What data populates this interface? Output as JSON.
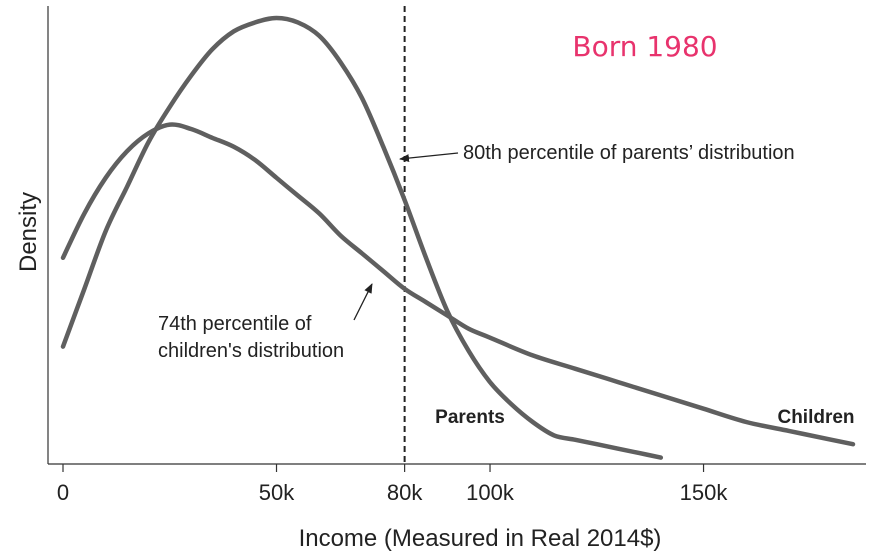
{
  "chart_data": {
    "type": "line",
    "title": "Born 1980",
    "title_color": "#e8336d",
    "xlabel": "Income (Measured in Real 2014$)",
    "ylabel": "Density",
    "xlim": [
      0,
      185
    ],
    "ylim": [
      0,
      1
    ],
    "x_unit": "k",
    "grid": false,
    "x_ticks": [
      {
        "value": 0,
        "label": "0"
      },
      {
        "value": 50,
        "label": "50k"
      },
      {
        "value": 80,
        "label": "80k"
      },
      {
        "value": 100,
        "label": "100k"
      },
      {
        "value": 150,
        "label": "150k"
      }
    ],
    "line_color": "#5f5f5f",
    "series": [
      {
        "name": "Parents",
        "x": [
          0,
          5,
          10,
          15,
          20,
          25,
          30,
          35,
          40,
          45,
          50,
          55,
          60,
          65,
          70,
          75,
          80,
          85,
          90,
          95,
          100,
          105,
          110,
          115,
          120,
          125,
          130,
          135,
          140
        ],
        "y": [
          0.26,
          0.39,
          0.52,
          0.62,
          0.72,
          0.8,
          0.87,
          0.93,
          0.97,
          0.99,
          1.0,
          0.99,
          0.96,
          0.9,
          0.82,
          0.71,
          0.59,
          0.46,
          0.34,
          0.25,
          0.18,
          0.13,
          0.09,
          0.06,
          0.05,
          0.04,
          0.03,
          0.02,
          0.01
        ]
      },
      {
        "name": "Children",
        "x": [
          0,
          5,
          10,
          15,
          20,
          25,
          30,
          35,
          40,
          45,
          50,
          55,
          60,
          65,
          70,
          75,
          80,
          85,
          90,
          95,
          100,
          110,
          120,
          130,
          140,
          150,
          160,
          170,
          180,
          185
        ],
        "y": [
          0.46,
          0.56,
          0.64,
          0.7,
          0.74,
          0.76,
          0.75,
          0.73,
          0.71,
          0.68,
          0.64,
          0.6,
          0.56,
          0.51,
          0.47,
          0.43,
          0.39,
          0.36,
          0.33,
          0.3,
          0.28,
          0.24,
          0.21,
          0.18,
          0.15,
          0.12,
          0.09,
          0.07,
          0.05,
          0.04
        ]
      }
    ],
    "reference_line": {
      "x": 80,
      "style": "dashed"
    },
    "annotations": {
      "parents_percentile": "80th percentile of parents’ distribution",
      "children_percentile_line1": "74th percentile of",
      "children_percentile_line2": "children's distribution"
    },
    "series_labels": {
      "parents": "Parents",
      "children": "Children"
    }
  }
}
